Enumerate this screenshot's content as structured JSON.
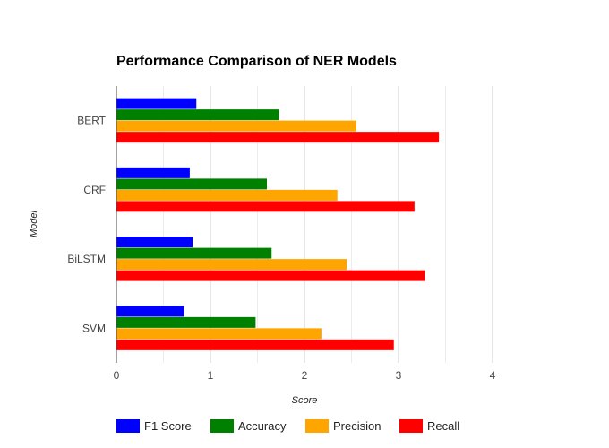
{
  "chart_data": {
    "type": "bar",
    "orientation": "horizontal",
    "title": "Performance Comparison of NER Models",
    "xlabel": "Score",
    "ylabel": "Model",
    "categories": [
      "BERT",
      "CRF",
      "BiLSTM",
      "SVM"
    ],
    "xlim": [
      0,
      4
    ],
    "x_ticks": [
      0,
      1,
      2,
      3,
      4
    ],
    "grid": true,
    "legend_position": "bottom",
    "series": [
      {
        "name": "F1 Score",
        "color": "#0000ff",
        "values": [
          0.85,
          0.78,
          0.81,
          0.72
        ]
      },
      {
        "name": "Accuracy",
        "color": "#008000",
        "values": [
          1.73,
          1.6,
          1.65,
          1.48
        ]
      },
      {
        "name": "Precision",
        "color": "#ffa500",
        "values": [
          2.55,
          2.35,
          2.45,
          2.18
        ]
      },
      {
        "name": "Recall",
        "color": "#ff0000",
        "values": [
          3.43,
          3.17,
          3.28,
          2.95
        ]
      }
    ]
  }
}
